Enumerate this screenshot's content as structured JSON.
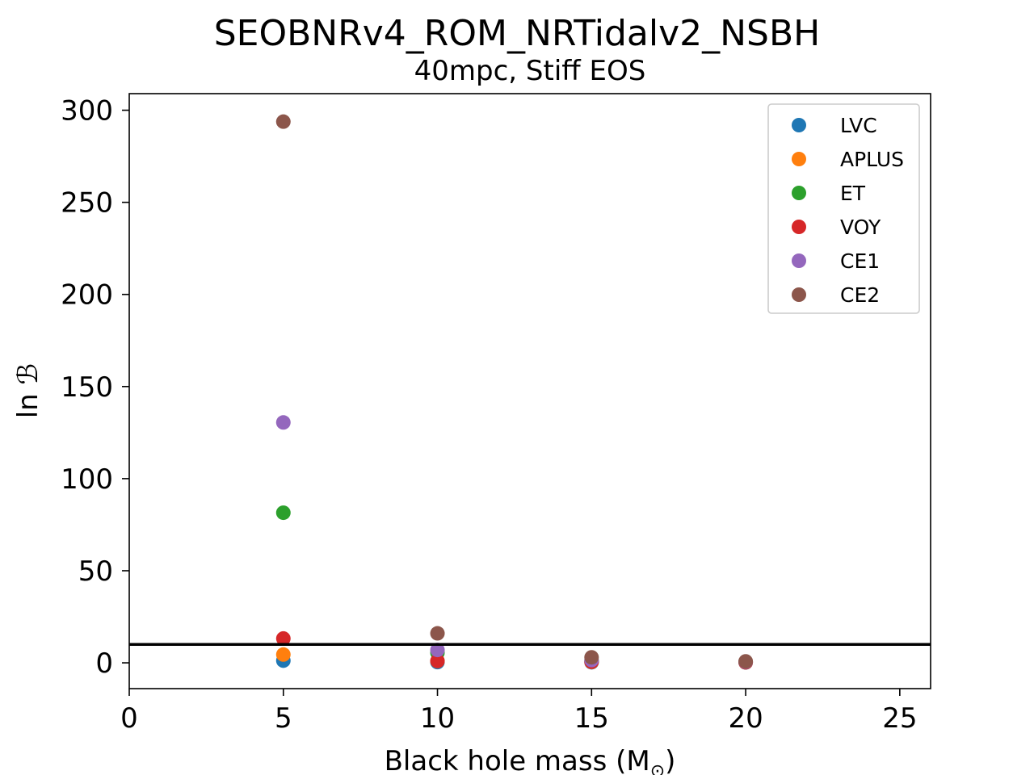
{
  "chart_data": {
    "type": "scatter",
    "title": "SEOBNRv4_ROM_NRTidalv2_NSBH",
    "subtitle": "40mpc, Stiff EOS",
    "xlabel": "Black hole mass (M",
    "xlabel_subscript": "⊙",
    "xlabel_close": ")",
    "ylabel": "ln ℬ",
    "xlim": [
      0,
      26
    ],
    "ylim": [
      -14,
      309
    ],
    "xticks": [
      0,
      5,
      10,
      15,
      20,
      25
    ],
    "yticks": [
      0,
      50,
      100,
      150,
      200,
      250,
      300
    ],
    "hline": 10,
    "grid": false,
    "legend_position": "top-right",
    "series": [
      {
        "name": "LVC",
        "color": "#1f77b4",
        "points": [
          [
            5,
            1.2
          ],
          [
            10,
            0.4
          ],
          [
            15,
            0.3
          ],
          [
            20,
            0.2
          ]
        ]
      },
      {
        "name": "APLUS",
        "color": "#ff7f0e",
        "points": [
          [
            5,
            4.5
          ],
          [
            10,
            1.0
          ],
          [
            15,
            0.5
          ],
          [
            20,
            0.3
          ]
        ]
      },
      {
        "name": "ET",
        "color": "#2ca02c",
        "points": [
          [
            5,
            81.5
          ],
          [
            10,
            5.5
          ],
          [
            15,
            1.0
          ],
          [
            20,
            0.5
          ]
        ]
      },
      {
        "name": "VOY",
        "color": "#d62728",
        "points": [
          [
            5,
            13.2
          ],
          [
            10,
            1.0
          ],
          [
            15,
            0.6
          ],
          [
            20,
            0.3
          ]
        ]
      },
      {
        "name": "CE1",
        "color": "#9467bd",
        "points": [
          [
            5,
            130.5
          ],
          [
            10,
            7.0
          ],
          [
            15,
            1.5
          ],
          [
            20,
            0.6
          ]
        ]
      },
      {
        "name": "CE2",
        "color": "#8c564b",
        "points": [
          [
            5,
            293.8
          ],
          [
            10,
            16.0
          ],
          [
            15,
            3.0
          ],
          [
            20,
            0.8
          ]
        ]
      }
    ]
  }
}
